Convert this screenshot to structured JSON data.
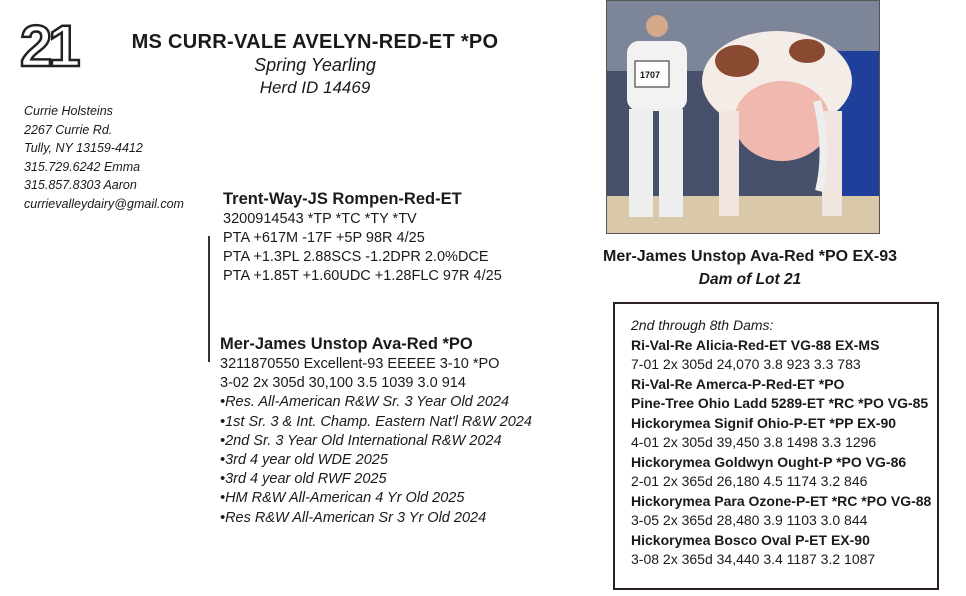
{
  "lot_number": "21",
  "header": {
    "title": "MS CURR-VALE AVELYN-RED-ET *PO",
    "class": "Spring Yearling",
    "herd_id": "Herd ID 14469"
  },
  "consignor": {
    "lines": [
      "Currie Holsteins",
      "2267 Currie Rd.",
      "Tully, NY 13159-4412",
      "315.729.6242 Emma",
      "315.857.8303 Aaron",
      "currievalleydairy@gmail.com"
    ]
  },
  "sire": {
    "name": "Trent-Way-JS Rompen-Red-ET",
    "lines": [
      "3200914543 *TP *TC *TY *TV",
      "PTA +617M -17F +5P 98R 4/25",
      "PTA +1.3PL 2.88SCS -1.2DPR 2.0%DCE",
      "PTA +1.85T +1.60UDC +1.28FLC 97R 4/25"
    ]
  },
  "dam": {
    "name": "Mer-James Unstop Ava-Red *PO",
    "lines": [
      "3211870550 Excellent-93 EEEEE 3-10 *PO",
      "3-02 2x 305d 30,100 3.5 1039 3.0 914"
    ],
    "awards": [
      "•Res. All-American R&W Sr. 3 Year Old 2024",
      "•1st Sr. 3 & Int. Champ. Eastern Nat'l R&W 2024",
      "•2nd Sr. 3 Year Old International R&W 2024",
      "•3rd 4 year old WDE 2025",
      "•3rd 4 year old RWF 2025",
      "•HM R&W All-American 4 Yr Old 2025",
      "•Res R&W All-American Sr 3 Yr Old 2024"
    ]
  },
  "photo": {
    "caption": "Mer-James Unstop Ava-Red *PO EX-93",
    "subcaption": "Dam of Lot 21",
    "handler_number": "1707"
  },
  "dams_box": {
    "heading": "2nd through 8th Dams:",
    "lines": [
      {
        "text": "Ri-Val-Re Alicia-Red-ET VG-88 EX-MS",
        "bold": true
      },
      {
        "text": "7-01 2x 305d 24,070 3.8 923 3.3 783",
        "bold": false
      },
      {
        "text": "Ri-Val-Re Amerca-P-Red-ET *PO",
        "bold": true
      },
      {
        "text": "Pine-Tree Ohio Ladd 5289-ET *RC *PO VG-85",
        "bold": true
      },
      {
        "text": "Hickorymea Signif Ohio-P-ET *PP EX-90",
        "bold": true
      },
      {
        "text": "4-01 2x 305d 39,450 3.8 1498 3.3 1296",
        "bold": false
      },
      {
        "text": "Hickorymea Goldwyn Ought-P *PO VG-86",
        "bold": true
      },
      {
        "text": "2-01 2x 365d 26,180 4.5 1174 3.2 846",
        "bold": false
      },
      {
        "text": "Hickorymea Para Ozone-P-ET *RC *PO VG-88",
        "bold": true
      },
      {
        "text": "3-05 2x 365d 28,480 3.9 1103 3.0 844",
        "bold": false
      },
      {
        "text": "Hickorymea Bosco Oval P-ET EX-90",
        "bold": true
      },
      {
        "text": "3-08 2x 365d 34,440 3.4 1187 3.2 1087",
        "bold": false
      }
    ]
  }
}
